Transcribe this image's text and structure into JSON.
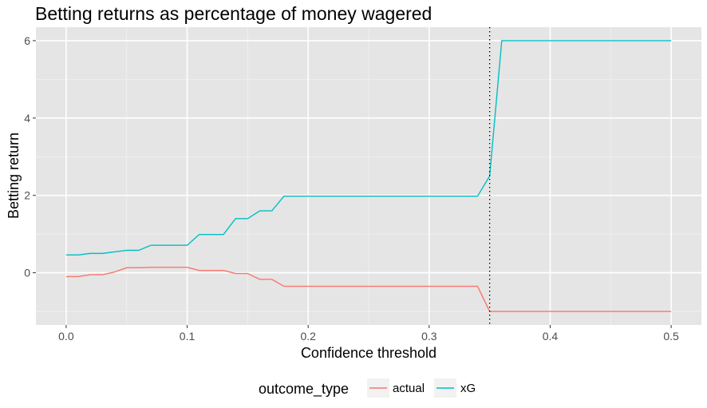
{
  "chart_data": {
    "type": "line",
    "title": "Betting returns as percentage of money wagered",
    "xlabel": "Confidence threshold",
    "ylabel": "Betting return",
    "xlim": [
      -0.025,
      0.525
    ],
    "ylim": [
      -1.35,
      6.35
    ],
    "x_ticks": [
      0.0,
      0.1,
      0.2,
      0.3,
      0.4,
      0.5
    ],
    "x_tick_labels": [
      "0.0",
      "0.1",
      "0.2",
      "0.3",
      "0.4",
      "0.5"
    ],
    "y_ticks": [
      0,
      2,
      4,
      6
    ],
    "y_tick_labels": [
      "0",
      "2",
      "4",
      "6"
    ],
    "x_minor_ticks": [
      0.05,
      0.15,
      0.25,
      0.35,
      0.45
    ],
    "y_minor_ticks": [
      -1,
      1,
      3,
      5
    ],
    "grid": true,
    "panel_background": "#e5e5e5",
    "vline": {
      "x": 0.35,
      "style": "dotted",
      "color": "#000000"
    },
    "legend": {
      "title": "outcome_type",
      "position": "bottom"
    },
    "x": [
      0.0,
      0.01,
      0.02,
      0.03,
      0.04,
      0.05,
      0.06,
      0.07,
      0.08,
      0.09,
      0.1,
      0.11,
      0.12,
      0.13,
      0.14,
      0.15,
      0.16,
      0.17,
      0.18,
      0.19,
      0.2,
      0.21,
      0.22,
      0.23,
      0.24,
      0.25,
      0.26,
      0.27,
      0.28,
      0.29,
      0.3,
      0.31,
      0.32,
      0.33,
      0.34,
      0.35,
      0.36,
      0.37,
      0.38,
      0.39,
      0.4,
      0.41,
      0.42,
      0.43,
      0.44,
      0.45,
      0.46,
      0.47,
      0.48,
      0.49,
      0.5
    ],
    "series": [
      {
        "name": "actual",
        "color": "#f8766d",
        "values": [
          -0.1,
          -0.1,
          -0.05,
          -0.05,
          0.02,
          0.13,
          0.13,
          0.14,
          0.14,
          0.14,
          0.14,
          0.06,
          0.06,
          0.06,
          -0.02,
          -0.02,
          -0.17,
          -0.17,
          -0.35,
          -0.35,
          -0.35,
          -0.35,
          -0.35,
          -0.35,
          -0.35,
          -0.35,
          -0.35,
          -0.35,
          -0.35,
          -0.35,
          -0.35,
          -0.35,
          -0.35,
          -0.35,
          -0.35,
          -1.0,
          -1.0,
          -1.0,
          -1.0,
          -1.0,
          -1.0,
          -1.0,
          -1.0,
          -1.0,
          -1.0,
          -1.0,
          -1.0,
          -1.0,
          -1.0,
          -1.0,
          -1.0
        ]
      },
      {
        "name": "xG",
        "color": "#00bfc4",
        "values": [
          0.46,
          0.46,
          0.5,
          0.5,
          0.54,
          0.58,
          0.58,
          0.71,
          0.71,
          0.71,
          0.71,
          0.99,
          0.99,
          0.99,
          1.4,
          1.4,
          1.6,
          1.6,
          1.98,
          1.98,
          1.98,
          1.98,
          1.98,
          1.98,
          1.98,
          1.98,
          1.98,
          1.98,
          1.98,
          1.98,
          1.98,
          1.98,
          1.98,
          1.98,
          1.98,
          2.5,
          6.0,
          6.0,
          6.0,
          6.0,
          6.0,
          6.0,
          6.0,
          6.0,
          6.0,
          6.0,
          6.0,
          6.0,
          6.0,
          6.0,
          6.0
        ]
      }
    ]
  }
}
